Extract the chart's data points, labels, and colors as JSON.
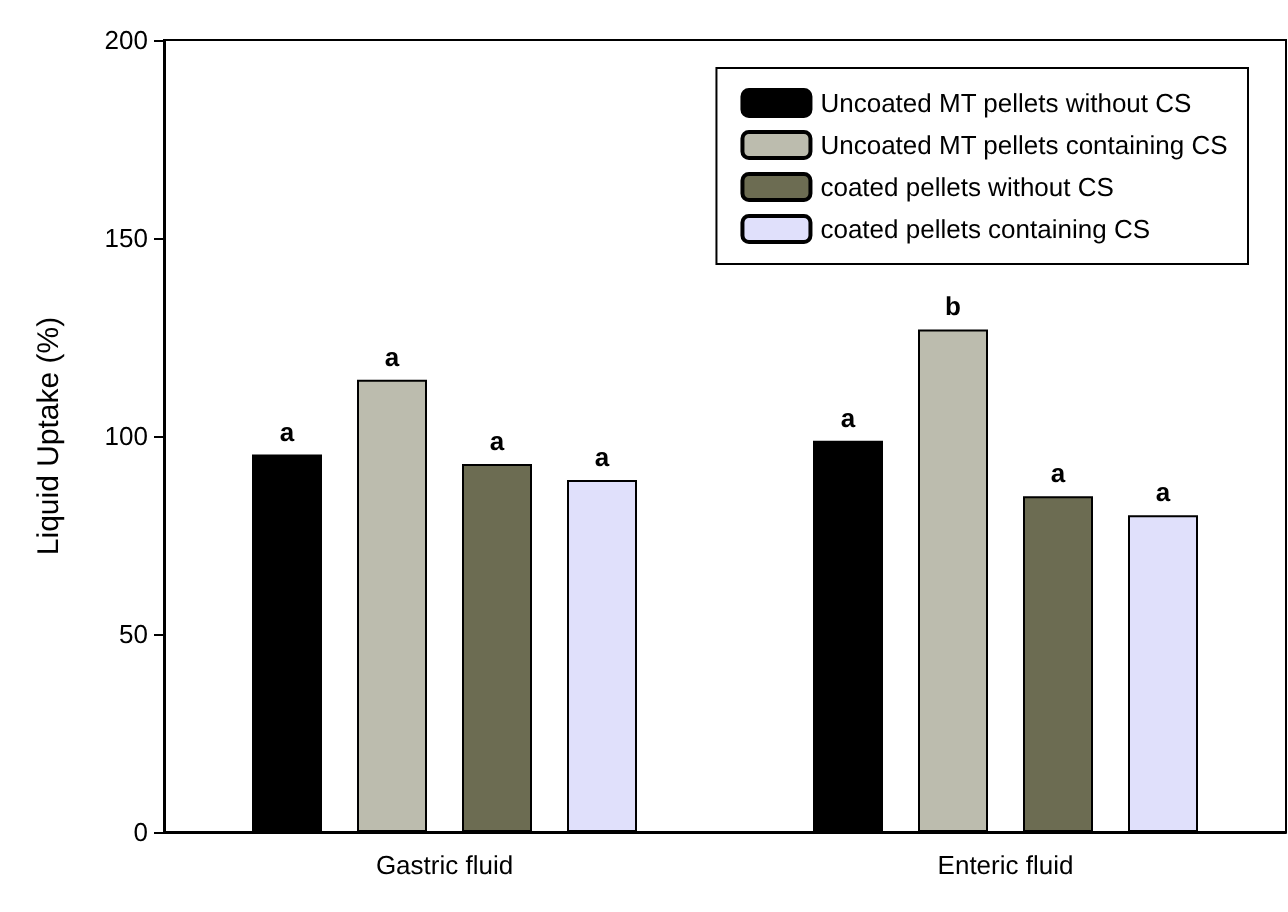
{
  "chart_data": {
    "type": "bar",
    "ylabel": "Liquid Uptake (%)",
    "categories": [
      "Gastric fluid",
      "Enteric fluid"
    ],
    "series": [
      {
        "name": "Uncoated MT pellets without CS",
        "color": "#000000",
        "values": [
          95.3,
          98.8
        ],
        "value_labels": [
          "a",
          "a"
        ]
      },
      {
        "name": "Uncoated MT pellets containing CS",
        "color": "#bcbcae",
        "values": [
          114.2,
          126.9
        ],
        "value_labels": [
          "a",
          "b"
        ]
      },
      {
        "name": "coated pellets without CS",
        "color": "#6c6c52",
        "values": [
          92.9,
          84.8
        ],
        "value_labels": [
          "a",
          "a"
        ]
      },
      {
        "name": "coated pellets containing CS",
        "color": "#e0e0fb",
        "values": [
          88.9,
          80.0
        ],
        "value_labels": [
          "a",
          "a"
        ]
      }
    ],
    "ylim": [
      0,
      200
    ],
    "yticks": [
      0,
      50,
      100,
      150,
      200
    ],
    "grid": false,
    "legend": "top right"
  }
}
